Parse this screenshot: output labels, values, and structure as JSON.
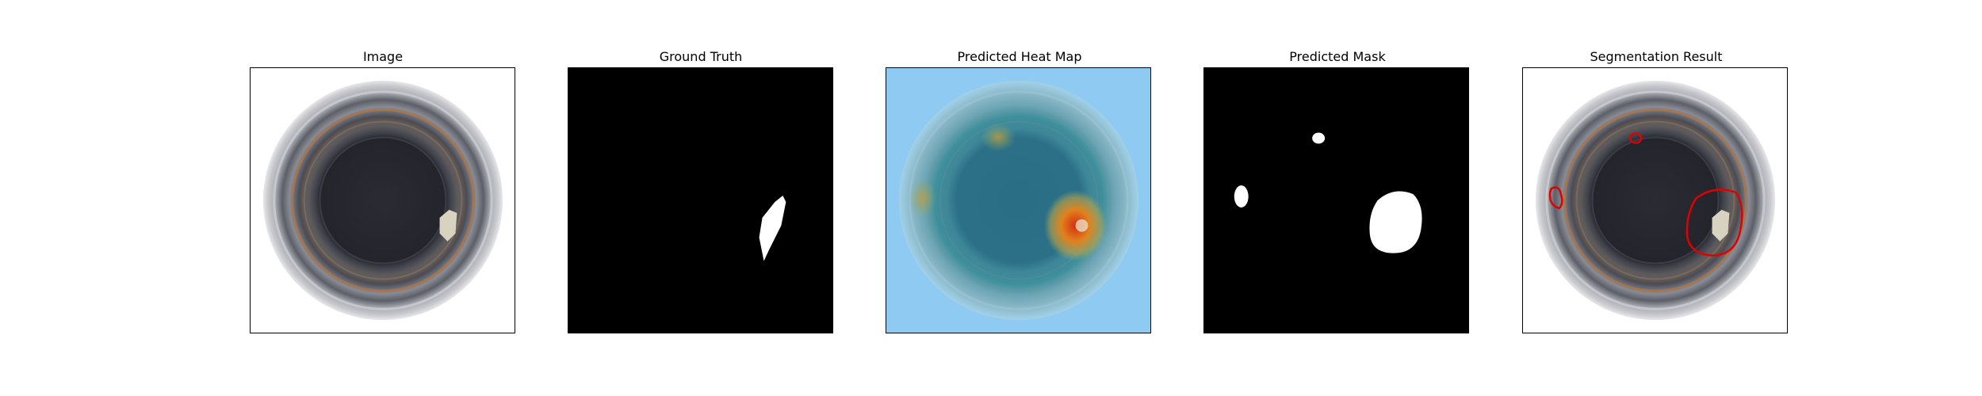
{
  "panels": [
    {
      "title": "Image"
    },
    {
      "title": "Ground Truth"
    },
    {
      "title": "Predicted Heat Map"
    },
    {
      "title": "Predicted Mask"
    },
    {
      "title": "Segmentation Result"
    }
  ],
  "colors": {
    "outline": "#e00000",
    "heatmap_bg": "#8ecaf2",
    "mask_bg": "#000000",
    "mask_fg": "#ffffff"
  }
}
